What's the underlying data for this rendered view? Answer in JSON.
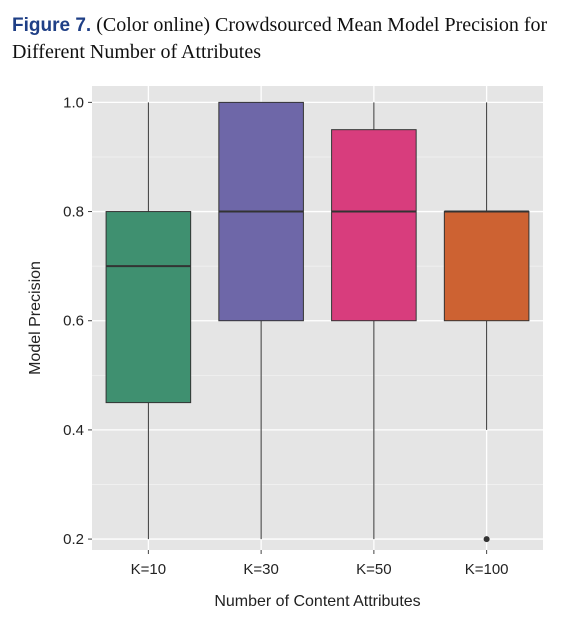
{
  "caption": {
    "label": "Figure 7.",
    "text": "(Color online) Crowdsourced Mean Model Precision for Different Number of Attributes"
  },
  "chart_data": {
    "type": "boxplot",
    "xlabel": "Number of Content Attributes",
    "ylabel": "Model Precision",
    "ylim": [
      0.18,
      1.03
    ],
    "yticks": [
      0.2,
      0.4,
      0.6,
      0.8,
      1.0
    ],
    "ytick_labels": [
      "0.2",
      "0.4",
      "0.6",
      "0.8",
      "1.0"
    ],
    "grid": true,
    "background": "#e5e5e5",
    "categories": [
      "K=10",
      "K=30",
      "K=50",
      "K=100"
    ],
    "boxes": [
      {
        "category": "K=10",
        "whisker_low": 0.2,
        "q1": 0.45,
        "median": 0.7,
        "q3": 0.8,
        "whisker_high": 1.0,
        "outliers": [],
        "color": "#3f9070"
      },
      {
        "category": "K=30",
        "whisker_low": 0.2,
        "q1": 0.6,
        "median": 0.8,
        "q3": 1.0,
        "whisker_high": 1.0,
        "outliers": [],
        "color": "#6e67a8"
      },
      {
        "category": "K=50",
        "whisker_low": 0.2,
        "q1": 0.6,
        "median": 0.8,
        "q3": 0.95,
        "whisker_high": 1.0,
        "outliers": [],
        "color": "#d83d7d"
      },
      {
        "category": "K=100",
        "whisker_low": 0.4,
        "q1": 0.6,
        "median": 0.8,
        "q3": 0.8,
        "whisker_high": 1.0,
        "outliers": [
          0.2
        ],
        "color": "#cd6232"
      }
    ]
  }
}
